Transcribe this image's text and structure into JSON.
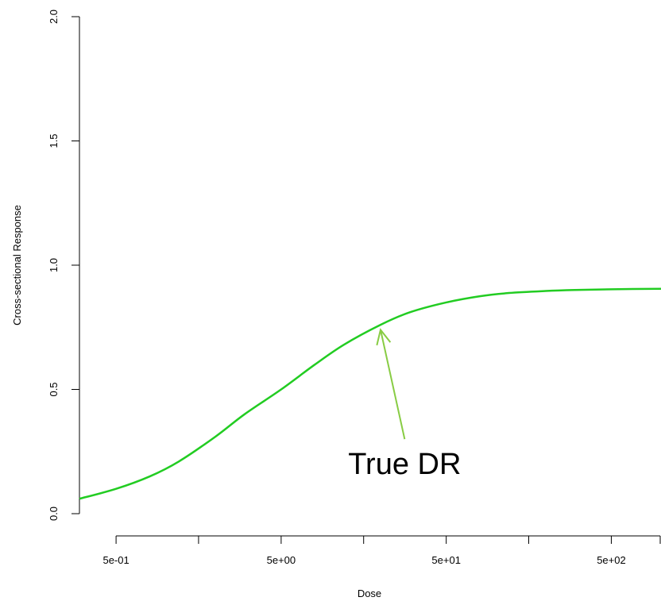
{
  "chart_data": {
    "type": "line",
    "xlabel": "Dose",
    "ylabel": "Cross-sectional Response",
    "x_scale": "log",
    "xlim": [
      0.3,
      1000
    ],
    "ylim": [
      0,
      2
    ],
    "x_ticks": [
      {
        "value": 0.5,
        "label": "5e-01"
      },
      {
        "value": 1.58,
        "label": ""
      },
      {
        "value": 5,
        "label": "5e+00"
      },
      {
        "value": 15.8,
        "label": ""
      },
      {
        "value": 50,
        "label": "5e+01"
      },
      {
        "value": 158,
        "label": ""
      },
      {
        "value": 500,
        "label": "5e+02"
      },
      {
        "value": 1000,
        "label": ""
      }
    ],
    "y_ticks": [
      {
        "value": 0,
        "label": "0.0"
      },
      {
        "value": 0.5,
        "label": "0.5"
      },
      {
        "value": 1,
        "label": "1.0"
      },
      {
        "value": 1.5,
        "label": "1.5"
      },
      {
        "value": 2,
        "label": "2.0"
      }
    ],
    "grid": false,
    "series": [
      {
        "name": "True DR",
        "color": "#22cc22",
        "x": [
          0.3,
          0.5,
          0.8,
          1.2,
          2,
          3,
          5,
          8,
          12,
          20,
          30,
          50,
          80,
          120,
          200,
          300,
          500,
          1000
        ],
        "y": [
          0.06,
          0.1,
          0.15,
          0.21,
          0.31,
          0.4,
          0.5,
          0.6,
          0.68,
          0.76,
          0.81,
          0.85,
          0.875,
          0.888,
          0.896,
          0.9,
          0.903,
          0.905
        ]
      }
    ],
    "annotations": [
      {
        "text": "True DR",
        "text_x": 28,
        "text_y": 0.16,
        "arrow_from": [
          28,
          0.3
        ],
        "arrow_to": [
          20,
          0.74
        ],
        "color": "#88cc44"
      }
    ]
  }
}
